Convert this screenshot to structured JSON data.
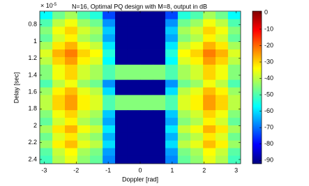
{
  "chart_data": {
    "type": "heatmap",
    "title": "N=16, Optimal PQ design with M=8, output in dB",
    "y_offset": "× 10",
    "y_offset_exp": "-5",
    "x_label": "Doppler [rad]",
    "y_label": "Delay [sec]",
    "xlim": [
      -3.14,
      3.14
    ],
    "ylim": [
      0.64,
      2.45
    ],
    "xticks": [
      -3,
      -2,
      -1,
      0,
      1,
      2,
      3
    ],
    "yticks": [
      0.8,
      1,
      1.2,
      1.4,
      1.6,
      1.8,
      2,
      2.2,
      2.4
    ],
    "clim": [
      -92,
      1
    ],
    "cticks": [
      0,
      -10,
      -20,
      -30,
      -40,
      -50,
      -60,
      -70,
      -80,
      -90
    ],
    "colormap": "jet",
    "x": [
      -2.94,
      -2.55,
      -2.16,
      -1.77,
      -1.37,
      -0.98,
      -0.59,
      -0.2,
      0.2,
      0.59,
      0.98,
      1.37,
      1.77,
      2.16,
      2.55,
      2.94
    ],
    "y": [
      0.69,
      0.78,
      0.87,
      0.96,
      1.05,
      1.14,
      1.23,
      1.32,
      1.41,
      1.5,
      1.59,
      1.68,
      1.77,
      1.86,
      1.95,
      2.04,
      2.13,
      2.22,
      2.31,
      2.4
    ],
    "z": [
      [
        -57,
        -47,
        -42,
        -50,
        -54,
        -74,
        -90,
        -90,
        -90,
        -90,
        -74,
        -54,
        -50,
        -42,
        -47,
        -57
      ],
      [
        -50,
        -40,
        -35,
        -43,
        -47,
        -67,
        -90,
        -90,
        -90,
        -90,
        -67,
        -47,
        -43,
        -35,
        -40,
        -50
      ],
      [
        -45,
        -35,
        -30,
        -38,
        -42,
        -62,
        -90,
        -90,
        -90,
        -90,
        -62,
        -42,
        -38,
        -30,
        -35,
        -45
      ],
      [
        -48,
        -38,
        -33,
        -41,
        -45,
        -65,
        -90,
        -90,
        -90,
        -90,
        -65,
        -45,
        -41,
        -33,
        -38,
        -48
      ],
      [
        -42,
        -32,
        -27,
        -35,
        -39,
        -59,
        -90,
        -90,
        -90,
        -90,
        -59,
        -39,
        -35,
        -27,
        -32,
        -42
      ],
      [
        -37,
        -27,
        -22,
        -30,
        -34,
        -54,
        -90,
        -90,
        -90,
        -90,
        -54,
        -34,
        -30,
        -22,
        -27,
        -37
      ],
      [
        -40,
        -30,
        -25,
        -33,
        -37,
        -57,
        -90,
        -90,
        -90,
        -90,
        -57,
        -37,
        -33,
        -25,
        -30,
        -40
      ],
      [
        -45,
        -35,
        -30,
        -38,
        -42,
        -50,
        -45,
        -45,
        -45,
        -45,
        -50,
        -42,
        -38,
        -30,
        -35,
        -45
      ],
      [
        -45,
        -35,
        -30,
        -38,
        -42,
        -50,
        -45,
        -45,
        -45,
        -45,
        -50,
        -42,
        -38,
        -30,
        -35,
        -45
      ],
      [
        -50,
        -40,
        -35,
        -43,
        -47,
        -67,
        -90,
        -90,
        -90,
        -90,
        -67,
        -47,
        -43,
        -35,
        -40,
        -50
      ],
      [
        -43,
        -33,
        -28,
        -36,
        -40,
        -60,
        -90,
        -90,
        -90,
        -90,
        -60,
        -40,
        -36,
        -28,
        -33,
        -43
      ],
      [
        -40,
        -30,
        -25,
        -33,
        -37,
        -50,
        -45,
        -45,
        -45,
        -45,
        -50,
        -37,
        -33,
        -25,
        -30,
        -40
      ],
      [
        -40,
        -30,
        -25,
        -33,
        -37,
        -50,
        -45,
        -45,
        -45,
        -45,
        -50,
        -37,
        -33,
        -25,
        -30,
        -40
      ],
      [
        -45,
        -35,
        -30,
        -38,
        -42,
        -62,
        -90,
        -90,
        -90,
        -90,
        -62,
        -42,
        -38,
        -30,
        -35,
        -45
      ],
      [
        -48,
        -38,
        -33,
        -41,
        -45,
        -65,
        -90,
        -90,
        -90,
        -90,
        -65,
        -45,
        -41,
        -33,
        -38,
        -48
      ],
      [
        -42,
        -32,
        -27,
        -35,
        -39,
        -59,
        -90,
        -90,
        -90,
        -90,
        -59,
        -39,
        -35,
        -27,
        -32,
        -42
      ],
      [
        -47,
        -37,
        -32,
        -40,
        -44,
        -64,
        -90,
        -90,
        -90,
        -90,
        -64,
        -44,
        -40,
        -32,
        -37,
        -47
      ],
      [
        -43,
        -33,
        -28,
        -36,
        -40,
        -60,
        -90,
        -90,
        -90,
        -90,
        -60,
        -40,
        -36,
        -28,
        -33,
        -43
      ],
      [
        -49,
        -39,
        -34,
        -42,
        -46,
        -66,
        -90,
        -90,
        -90,
        -90,
        -66,
        -46,
        -42,
        -34,
        -39,
        -49
      ],
      [
        -51,
        -41,
        -36,
        -44,
        -48,
        -68,
        -90,
        -90,
        -90,
        -90,
        -68,
        -48,
        -44,
        -36,
        -41,
        -51
      ]
    ]
  }
}
